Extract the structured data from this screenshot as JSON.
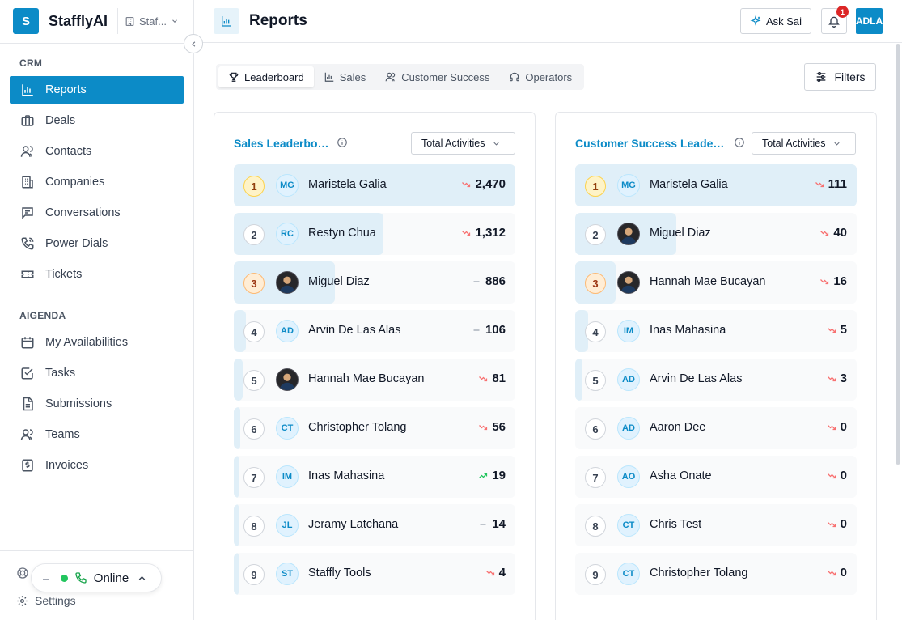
{
  "brand": {
    "logo_letter": "S",
    "name": "StafflyAI",
    "workspace": "Staf..."
  },
  "sidebar": {
    "sections": [
      {
        "label": "CRM",
        "items": [
          {
            "label": "Reports",
            "icon": "bar-chart-icon",
            "active": true
          },
          {
            "label": "Deals",
            "icon": "briefcase-icon"
          },
          {
            "label": "Contacts",
            "icon": "users-icon"
          },
          {
            "label": "Companies",
            "icon": "building-icon"
          },
          {
            "label": "Conversations",
            "icon": "message-icon"
          },
          {
            "label": "Power Dials",
            "icon": "phone-call-icon"
          },
          {
            "label": "Tickets",
            "icon": "ticket-icon"
          }
        ]
      },
      {
        "label": "AIGENDA",
        "items": [
          {
            "label": "My Availabilities",
            "icon": "calendar-icon"
          },
          {
            "label": "Tasks",
            "icon": "check-square-icon"
          },
          {
            "label": "Submissions",
            "icon": "file-text-icon"
          },
          {
            "label": "Teams",
            "icon": "team-icon"
          },
          {
            "label": "Invoices",
            "icon": "dollar-icon"
          }
        ]
      }
    ],
    "settings_label": "Settings",
    "status": {
      "dash": "–",
      "label": "Online",
      "color": "#22c55e"
    }
  },
  "header": {
    "title": "Reports",
    "ask_label": "Ask Sai",
    "notification_count": "1",
    "avatar_initials": "ADLA"
  },
  "tabs": [
    {
      "label": "Leaderboard",
      "icon": "trophy-icon",
      "active": true
    },
    {
      "label": "Sales",
      "icon": "bar-chart-icon"
    },
    {
      "label": "Customer Success",
      "icon": "users-icon"
    },
    {
      "label": "Operators",
      "icon": "headphones-icon"
    }
  ],
  "filters_label": "Filters",
  "colors": {
    "accent": "#0c8bc7",
    "trend_down": "#f87171",
    "trend_up": "#22c55e",
    "trend_flat": "#9ca3af"
  },
  "leaderboards": [
    {
      "title": "Sales Leaderboard",
      "metric": "Total Activities",
      "entries": [
        {
          "rank": "1",
          "initials": "MG",
          "name": "Maristela Galia",
          "value": "2,470",
          "trend": "down",
          "share": 1.0
        },
        {
          "rank": "2",
          "initials": "RC",
          "name": "Restyn Chua",
          "value": "1,312",
          "trend": "down",
          "share": 0.531
        },
        {
          "rank": "3",
          "initials": "",
          "photo": true,
          "name": "Miguel Diaz",
          "value": "886",
          "trend": "flat",
          "share": 0.359
        },
        {
          "rank": "4",
          "initials": "AD",
          "name": "Arvin De Las Alas",
          "value": "106",
          "trend": "flat",
          "share": 0.043
        },
        {
          "rank": "5",
          "initials": "",
          "photo": true,
          "name": "Hannah Mae Bucayan",
          "value": "81",
          "trend": "down",
          "share": 0.033
        },
        {
          "rank": "6",
          "initials": "CT",
          "name": "Christopher Tolang",
          "value": "56",
          "trend": "down",
          "share": 0.023
        },
        {
          "rank": "7",
          "initials": "IM",
          "name": "Inas Mahasina",
          "value": "19",
          "trend": "up",
          "share": 0.008
        },
        {
          "rank": "8",
          "initials": "JL",
          "name": "Jeramy Latchana",
          "value": "14",
          "trend": "flat",
          "share": 0.006
        },
        {
          "rank": "9",
          "initials": "ST",
          "name": "Staffly Tools",
          "value": "4",
          "trend": "down",
          "share": 0.002
        }
      ]
    },
    {
      "title": "Customer Success Leader...",
      "metric": "Total Activities",
      "entries": [
        {
          "rank": "1",
          "initials": "MG",
          "name": "Maristela Galia",
          "value": "111",
          "trend": "down",
          "share": 1.0
        },
        {
          "rank": "2",
          "initials": "",
          "photo": true,
          "name": "Miguel Diaz",
          "value": "40",
          "trend": "down",
          "share": 0.36
        },
        {
          "rank": "3",
          "initials": "",
          "photo": true,
          "name": "Hannah Mae Bucayan",
          "value": "16",
          "trend": "down",
          "share": 0.144
        },
        {
          "rank": "4",
          "initials": "IM",
          "name": "Inas Mahasina",
          "value": "5",
          "trend": "down",
          "share": 0.045
        },
        {
          "rank": "5",
          "initials": "AD",
          "name": "Arvin De Las Alas",
          "value": "3",
          "trend": "down",
          "share": 0.027
        },
        {
          "rank": "6",
          "initials": "AD",
          "name": "Aaron Dee",
          "value": "0",
          "trend": "down",
          "share": 0
        },
        {
          "rank": "7",
          "initials": "AO",
          "name": "Asha Onate",
          "value": "0",
          "trend": "down",
          "share": 0
        },
        {
          "rank": "8",
          "initials": "CT",
          "name": "Chris Test",
          "value": "0",
          "trend": "down",
          "share": 0
        },
        {
          "rank": "9",
          "initials": "CT",
          "name": "Christopher Tolang",
          "value": "0",
          "trend": "down",
          "share": 0
        }
      ]
    }
  ]
}
